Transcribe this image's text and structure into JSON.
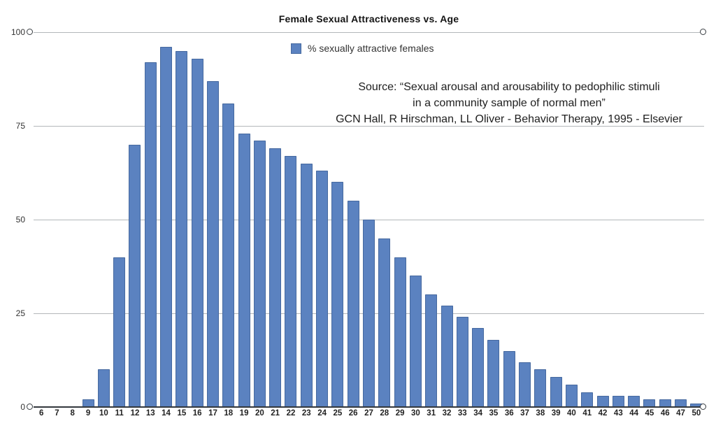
{
  "chart": {
    "title": "Female Sexual Attractiveness vs. Age",
    "legend_label": "% sexually attractive females",
    "source_lines": [
      "Source: “Sexual arousal and arousability to pedophilic stimuli",
      "in a community sample of normal men”",
      "GCN Hall, R Hirschman, LL Oliver - Behavior Therapy, 1995 - Elsevier"
    ]
  },
  "chart_data": {
    "type": "bar",
    "title": "Female Sexual Attractiveness vs. Age",
    "categories": [
      "6",
      "7",
      "8",
      "9",
      "10",
      "11",
      "12",
      "13",
      "14",
      "15",
      "16",
      "17",
      "18",
      "19",
      "20",
      "21",
      "22",
      "23",
      "24",
      "25",
      "26",
      "27",
      "28",
      "29",
      "30",
      "31",
      "32",
      "33",
      "34",
      "35",
      "36",
      "37",
      "38",
      "39",
      "40",
      "41",
      "42",
      "43",
      "44",
      "45",
      "46",
      "47",
      "50"
    ],
    "values": [
      0,
      0,
      0,
      2,
      10,
      40,
      70,
      92,
      96,
      95,
      93,
      87,
      81,
      73,
      71,
      69,
      67,
      65,
      63,
      60,
      55,
      50,
      45,
      40,
      35,
      30,
      27,
      24,
      21,
      18,
      15,
      12,
      10,
      8,
      6,
      4,
      3,
      3,
      3,
      2,
      2,
      2,
      1
    ],
    "series_name": "% sexually attractive females",
    "ylim": [
      0,
      100
    ],
    "yticks": [
      0,
      25,
      50,
      75,
      100
    ],
    "grid": true,
    "legend_position": "top-center",
    "theme": {
      "bar_fill": "#5b82c0",
      "bar_border": "#46699f",
      "grid_color": "#b3b7ba",
      "axis_color": "#33383d",
      "background": "#ffffff"
    }
  }
}
